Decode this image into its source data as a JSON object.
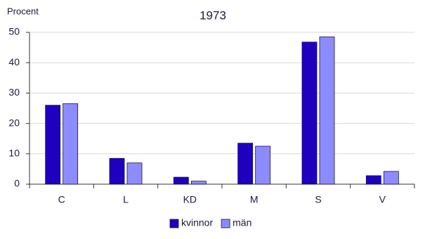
{
  "chart_data": {
    "type": "bar",
    "title": "1973",
    "y_label": "Procent",
    "categories": [
      "C",
      "L",
      "KD",
      "M",
      "S",
      "V"
    ],
    "series": [
      {
        "name": "kvinnor",
        "color": "#1e00be",
        "values": [
          26,
          8.5,
          2.3,
          13.5,
          46.8,
          2.8
        ]
      },
      {
        "name": "män",
        "color": "#8c8cff",
        "values": [
          26.5,
          7,
          1,
          12.5,
          48.5,
          4.2
        ]
      }
    ],
    "ylim": [
      0,
      50
    ],
    "yticks": [
      0,
      10,
      20,
      30,
      40,
      50
    ],
    "grid": true,
    "legend": "bottom"
  }
}
